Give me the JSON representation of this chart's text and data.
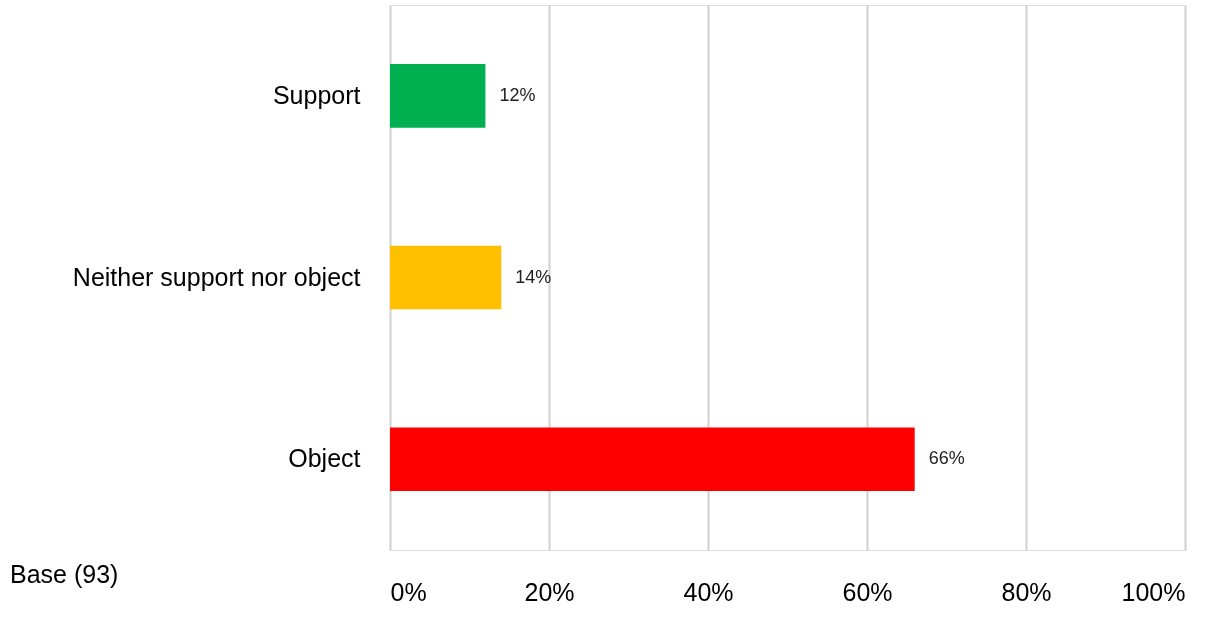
{
  "chart_data": {
    "type": "bar",
    "orientation": "horizontal",
    "categories": [
      "Support",
      "Neither support nor object",
      "Object"
    ],
    "values": [
      12,
      14,
      66
    ],
    "colors": [
      "#00b050",
      "#ffc000",
      "#ff0000"
    ],
    "value_labels": [
      "12%",
      "14%",
      "66%"
    ],
    "xlim": [
      0,
      100
    ],
    "xticks": [
      {
        "value": 0,
        "label": "0%"
      },
      {
        "value": 20,
        "label": "20%"
      },
      {
        "value": 40,
        "label": "40%"
      },
      {
        "value": 60,
        "label": "60%"
      },
      {
        "value": 80,
        "label": "80%"
      },
      {
        "value": 100,
        "label": "100%"
      }
    ],
    "grid": "x",
    "annotations": [
      "Base (93)"
    ]
  }
}
